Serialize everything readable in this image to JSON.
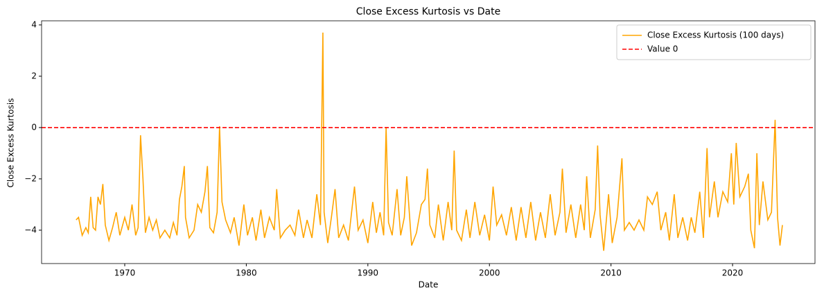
{
  "chart_data": {
    "type": "line",
    "title": "Close Excess Kurtosis vs Date",
    "x_label": "Date",
    "y_label": "Close Excess Kurtosis",
    "xlim": [
      1963.16,
      2026.78
    ],
    "ylim": [
      -5.3,
      4.16
    ],
    "xticks": [
      1970,
      1980,
      1990,
      2000,
      2010,
      2020
    ],
    "yticks": [
      {
        "value": -4,
        "label": "−4"
      },
      {
        "value": -2,
        "label": "−2"
      },
      0,
      2,
      4
    ],
    "grid": false,
    "legend": "upper right",
    "x": [
      1966.0,
      1966.2,
      1966.5,
      1966.8,
      1967.0,
      1967.2,
      1967.4,
      1967.6,
      1967.8,
      1968.0,
      1968.2,
      1968.4,
      1968.7,
      1969.0,
      1969.3,
      1969.6,
      1970.0,
      1970.3,
      1970.6,
      1970.9,
      1971.1,
      1971.3,
      1971.5,
      1971.7,
      1972.0,
      1972.3,
      1972.6,
      1972.9,
      1973.3,
      1973.7,
      1974.0,
      1974.3,
      1974.5,
      1974.7,
      1974.9,
      1975.0,
      1975.3,
      1975.7,
      1976.0,
      1976.3,
      1976.6,
      1976.8,
      1977.0,
      1977.3,
      1977.6,
      1977.8,
      1978.0,
      1978.3,
      1978.7,
      1979.0,
      1979.4,
      1979.8,
      1980.1,
      1980.5,
      1980.8,
      1981.2,
      1981.5,
      1981.9,
      1982.3,
      1982.5,
      1982.8,
      1983.2,
      1983.6,
      1984.0,
      1984.3,
      1984.7,
      1985.0,
      1985.4,
      1985.8,
      1986.1,
      1986.3,
      1986.4,
      1986.7,
      1987.0,
      1987.3,
      1987.6,
      1988.0,
      1988.4,
      1988.9,
      1989.2,
      1989.6,
      1990.0,
      1990.4,
      1990.7,
      1991.0,
      1991.3,
      1991.5,
      1991.7,
      1992.0,
      1992.4,
      1992.7,
      1993.0,
      1993.2,
      1993.6,
      1994.0,
      1994.4,
      1994.7,
      1994.9,
      1995.1,
      1995.5,
      1995.8,
      1996.2,
      1996.6,
      1996.9,
      1997.1,
      1997.3,
      1997.7,
      1998.1,
      1998.4,
      1998.8,
      1999.2,
      1999.6,
      2000.0,
      2000.3,
      2000.6,
      2001.0,
      2001.4,
      2001.8,
      2002.2,
      2002.6,
      2003.0,
      2003.4,
      2003.8,
      2004.2,
      2004.6,
      2005.0,
      2005.4,
      2005.8,
      2006.0,
      2006.3,
      2006.7,
      2007.1,
      2007.5,
      2007.8,
      2008.0,
      2008.3,
      2008.7,
      2008.9,
      2009.1,
      2009.4,
      2009.8,
      2010.1,
      2010.5,
      2010.9,
      2011.1,
      2011.5,
      2011.9,
      2012.3,
      2012.7,
      2013.0,
      2013.4,
      2013.8,
      2014.1,
      2014.5,
      2014.8,
      2015.2,
      2015.5,
      2015.9,
      2016.3,
      2016.6,
      2016.9,
      2017.3,
      2017.6,
      2017.9,
      2018.1,
      2018.5,
      2018.8,
      2019.2,
      2019.6,
      2019.9,
      2020.1,
      2020.3,
      2020.6,
      2021.0,
      2021.3,
      2021.5,
      2021.8,
      2022.0,
      2022.2,
      2022.5,
      2022.9,
      2023.2,
      2023.5,
      2023.7,
      2023.9,
      2024.1
    ],
    "series": [
      {
        "name": "Close Excess Kurtosis (100 days)",
        "color": "#ffa500",
        "values": [
          -3.6,
          -3.5,
          -4.2,
          -3.9,
          -4.1,
          -2.7,
          -3.9,
          -4.0,
          -2.7,
          -3.0,
          -2.2,
          -3.8,
          -4.4,
          -3.9,
          -3.3,
          -4.2,
          -3.5,
          -4.0,
          -3.0,
          -4.2,
          -3.9,
          -0.3,
          -2.0,
          -4.1,
          -3.5,
          -4.0,
          -3.6,
          -4.3,
          -4.0,
          -4.3,
          -3.7,
          -4.2,
          -2.8,
          -2.3,
          -1.5,
          -3.5,
          -4.3,
          -4.0,
          -3.0,
          -3.3,
          -2.5,
          -1.5,
          -3.9,
          -4.1,
          -3.3,
          0.05,
          -2.9,
          -3.6,
          -4.1,
          -3.5,
          -4.6,
          -3.0,
          -4.2,
          -3.5,
          -4.4,
          -3.2,
          -4.3,
          -3.5,
          -4.0,
          -2.4,
          -4.3,
          -4.0,
          -3.8,
          -4.2,
          -3.2,
          -4.3,
          -3.6,
          -4.3,
          -2.6,
          -3.8,
          3.7,
          -3.3,
          -4.5,
          -3.5,
          -2.4,
          -4.3,
          -3.8,
          -4.4,
          -2.3,
          -4.0,
          -3.6,
          -4.5,
          -2.9,
          -4.1,
          -3.3,
          -4.2,
          0.0,
          -3.7,
          -4.2,
          -2.4,
          -4.2,
          -3.5,
          -1.9,
          -4.6,
          -4.1,
          -3.0,
          -2.8,
          -1.6,
          -3.8,
          -4.3,
          -3.0,
          -4.4,
          -2.9,
          -4.0,
          -0.9,
          -4.0,
          -4.4,
          -3.2,
          -4.3,
          -2.9,
          -4.2,
          -3.4,
          -4.4,
          -2.3,
          -3.8,
          -3.4,
          -4.2,
          -3.1,
          -4.4,
          -3.1,
          -4.3,
          -2.9,
          -4.4,
          -3.3,
          -4.3,
          -2.6,
          -4.2,
          -3.3,
          -1.6,
          -4.1,
          -3.0,
          -4.3,
          -3.0,
          -4.0,
          -1.9,
          -4.3,
          -3.2,
          -0.7,
          -3.4,
          -4.8,
          -2.6,
          -4.5,
          -3.5,
          -1.2,
          -4.0,
          -3.7,
          -4.0,
          -3.6,
          -4.0,
          -2.7,
          -3.0,
          -2.5,
          -4.0,
          -3.3,
          -4.4,
          -2.6,
          -4.3,
          -3.5,
          -4.4,
          -3.5,
          -4.1,
          -2.5,
          -4.3,
          -0.8,
          -3.5,
          -2.1,
          -3.5,
          -2.5,
          -2.9,
          -1.0,
          -3.0,
          -0.6,
          -2.7,
          -2.3,
          -1.8,
          -4.0,
          -4.7,
          -1.0,
          -3.8,
          -2.1,
          -3.6,
          -3.3,
          0.3,
          -3.5,
          -4.6,
          -3.8
        ]
      }
    ],
    "reference_line": {
      "name": "Value 0",
      "y": 0,
      "color": "#ff0000"
    }
  }
}
